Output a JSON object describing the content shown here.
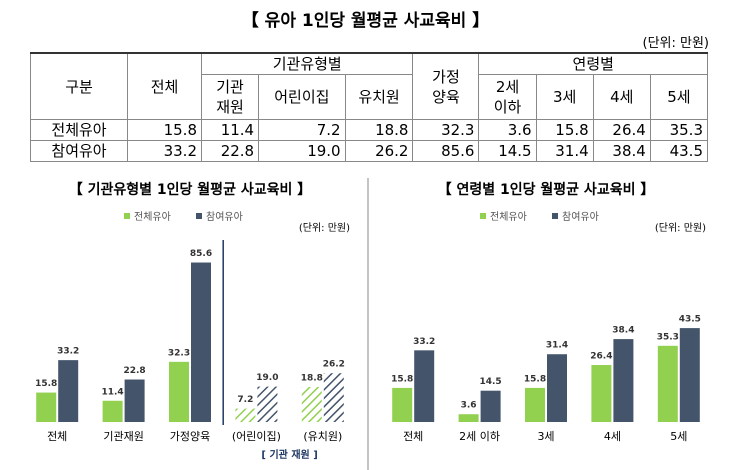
{
  "title": "【 유아 1인당 월평균 사교육비 】",
  "unit": "(단위: 만원)",
  "table": {
    "header_top": [
      "구분",
      "전체",
      "기관유형별",
      "가정\n양육",
      "연령별"
    ],
    "header_sub": [
      "기관\n재원",
      "어린이집",
      "유치원",
      "2세\n이하",
      "3세",
      "4세",
      "5세"
    ],
    "rows": [
      [
        "전체유아",
        "15.8",
        "11.4",
        "7.2",
        "18.8",
        "32.3",
        "3.6",
        "15.8",
        "26.4",
        "35.3"
      ],
      [
        "참여유아",
        "33.2",
        "22.8",
        "19.0",
        "26.2",
        "85.6",
        "14.5",
        "31.4",
        "38.4",
        "43.5"
      ]
    ]
  },
  "chart_data": [
    {
      "type": "bar",
      "title": "【 기관유형별 1인당 월평균 사교육비 】",
      "unit": "(단위: 만원)",
      "categories": [
        "전체",
        "기관재원",
        "가정양육",
        "(어린이집)",
        "(유치원)"
      ],
      "hatched": [
        false,
        false,
        false,
        true,
        true
      ],
      "annotation": "[ 기관 재원 ]",
      "series": [
        {
          "name": "전체유아",
          "color": "#92d050",
          "values": [
            15.8,
            11.4,
            32.3,
            7.2,
            18.8
          ]
        },
        {
          "name": "참여유아",
          "color": "#44546a",
          "values": [
            33.2,
            22.8,
            85.6,
            19.0,
            26.2
          ],
          "value_labels": [
            "33.2",
            "22.8",
            "85.6",
            "19.0",
            "26.2"
          ]
        }
      ],
      "ylim": [
        0,
        95
      ]
    },
    {
      "type": "bar",
      "title": "【 연령별 1인당 월평균 사교육비 】",
      "unit": "(단위: 만원)",
      "categories": [
        "전체",
        "2세 이하",
        "3세",
        "4세",
        "5세"
      ],
      "series": [
        {
          "name": "전체유아",
          "color": "#92d050",
          "values": [
            15.8,
            3.6,
            15.8,
            26.4,
            35.3
          ]
        },
        {
          "name": "참여유아",
          "color": "#44546a",
          "values": [
            33.2,
            14.5,
            31.4,
            38.4,
            43.5
          ]
        }
      ],
      "ylim": [
        0,
        82
      ]
    }
  ]
}
